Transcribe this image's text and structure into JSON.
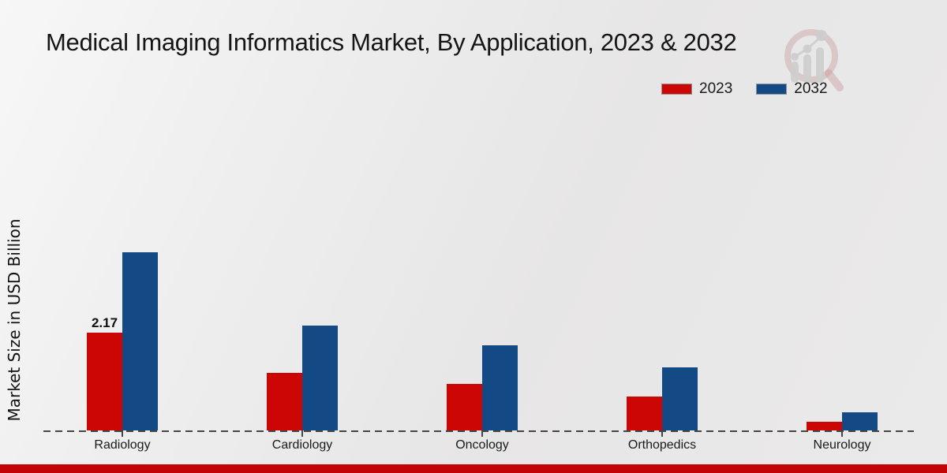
{
  "title": "Medical Imaging Informatics Market, By Application, 2023 & 2032",
  "ylabel": "Market Size in USD Billion",
  "colors": {
    "series_2023": "#cc0505",
    "series_2032": "#134a85",
    "baseline": "#454545",
    "bottom_strip": "#c20404",
    "text": "#1a1a1a"
  },
  "legend": {
    "position": "top-right",
    "items": [
      {
        "label": "2023",
        "color": "#cc0505"
      },
      {
        "label": "2032",
        "color": "#134a85"
      }
    ]
  },
  "watermark": {
    "icon": "magnifier-bar-chart-logo"
  },
  "chart_data": {
    "type": "bar",
    "title": "Medical Imaging Informatics Market, By Application, 2023 & 2032",
    "xlabel": "",
    "ylabel": "Market Size in USD Billion",
    "categories": [
      "Radiology",
      "Cardiology",
      "Oncology",
      "Orthopedics",
      "Neurology"
    ],
    "series": [
      {
        "name": "2023",
        "color": "#cc0505",
        "values": [
          2.17,
          1.28,
          1.03,
          0.76,
          0.19
        ]
      },
      {
        "name": "2032",
        "color": "#134a85",
        "values": [
          3.95,
          2.33,
          1.89,
          1.4,
          0.4
        ]
      }
    ],
    "annotations": [
      {
        "series": "2023",
        "category": "Radiology",
        "text": "2.17"
      }
    ],
    "ylim": [
      0,
      4.4
    ],
    "grid": false,
    "axis_style": "dashed-baseline-only",
    "legend_position": "top-right"
  }
}
